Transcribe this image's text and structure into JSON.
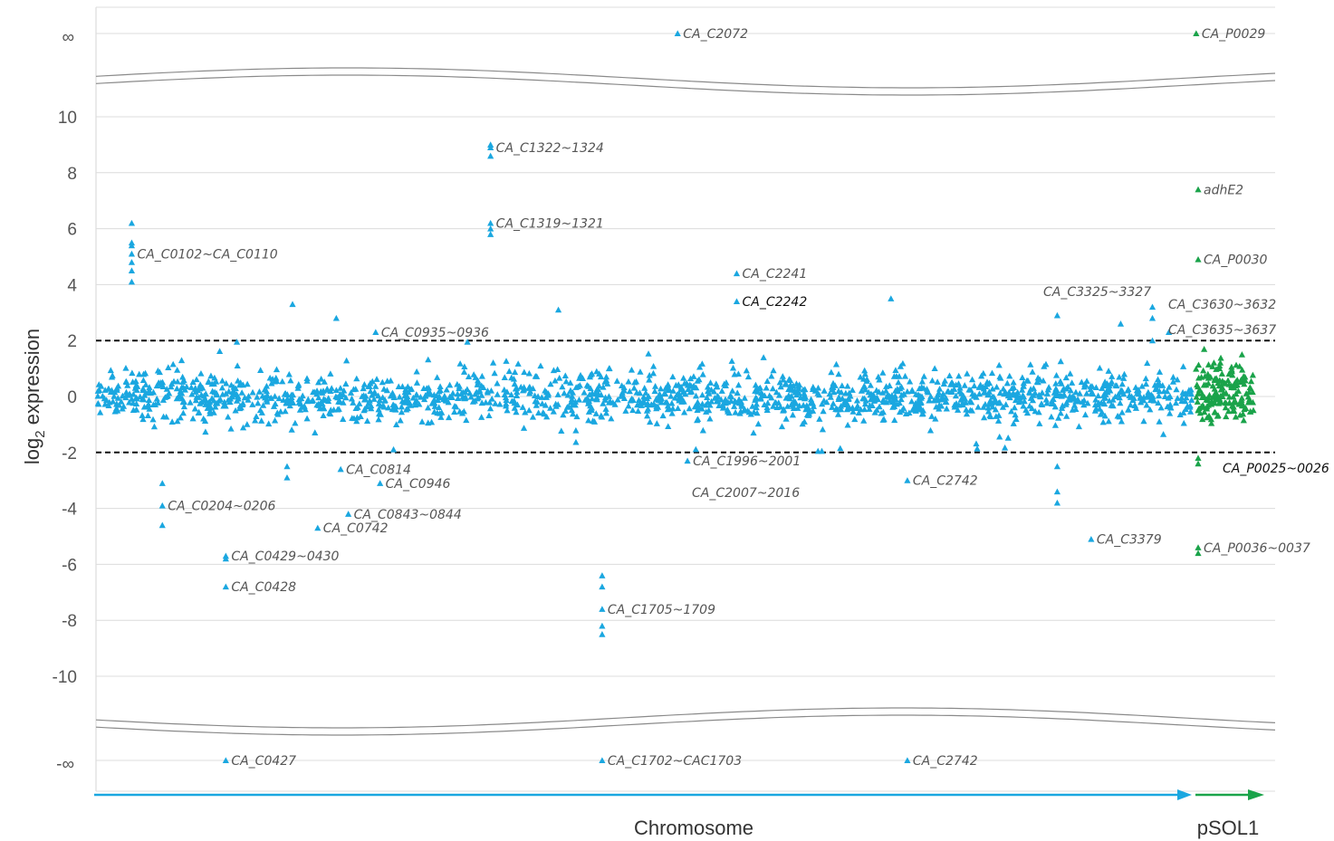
{
  "chart_data": {
    "type": "scatter",
    "ylabel_main": "log",
    "ylabel_sub": "2",
    "ylabel_rest": " expression",
    "y_ticks": [
      "10",
      "8",
      "6",
      "4",
      "2",
      "0",
      "-2",
      "-4",
      "-6",
      "-8",
      "-10"
    ],
    "y_tick_values": [
      10,
      8,
      6,
      4,
      2,
      0,
      -2,
      -4,
      -6,
      -8,
      -10
    ],
    "y_inf_label": "∞",
    "y_neginf_label": "-∞",
    "ylim": [
      -11,
      11
    ],
    "thresholds": [
      2,
      -2
    ],
    "grid": true,
    "x_segments": [
      {
        "label": "Chromosome",
        "color": "#1aa7e0"
      },
      {
        "label": "pSOL1",
        "color": "#1aa34a"
      }
    ],
    "series": [
      {
        "name": "Chromosome",
        "color": "#1aa7e0"
      },
      {
        "name": "pSOL1",
        "color": "#1aa34a"
      }
    ],
    "labeled_points": [
      {
        "label": "CA_C2072",
        "pos": 0.53,
        "y": "inf",
        "series": "Chromosome",
        "dark": false
      },
      {
        "label": "CA_P0029",
        "pos": 0.013,
        "y": "inf",
        "series": "pSOL1",
        "dark": false
      },
      {
        "label": "CA_C1322~1324",
        "pos": 0.359,
        "y": 8.9,
        "series": "Chromosome",
        "dark": false
      },
      {
        "label": "adhE2",
        "pos": 0.047,
        "y": 7.4,
        "series": "pSOL1",
        "dark": false
      },
      {
        "label": "CA_C1319~1321",
        "pos": 0.359,
        "y": 6.2,
        "series": "Chromosome",
        "dark": false
      },
      {
        "label": "CA_C0102~CA_C0110",
        "pos": 0.031,
        "y": 5.1,
        "series": "Chromosome",
        "dark": false
      },
      {
        "label": "CA_P0030",
        "pos": 0.047,
        "y": 4.9,
        "series": "pSOL1",
        "dark": false
      },
      {
        "label": "CA_C2241",
        "pos": 0.584,
        "y": 4.4,
        "series": "Chromosome",
        "dark": false
      },
      {
        "label": "CA_C2242",
        "pos": 0.584,
        "y": 3.4,
        "series": "Chromosome",
        "dark": true
      },
      {
        "label": "CA_C3325~3327",
        "pos": 0.877,
        "y": 3.3,
        "series": "Chromosome",
        "dark": false
      },
      {
        "label": "CA_C3630~3632",
        "pos": 0.964,
        "y": 3.1,
        "series": "Chromosome",
        "dark": false
      },
      {
        "label": "CA_C0935~0936",
        "pos": 0.254,
        "y": 2.3,
        "series": "Chromosome",
        "dark": false
      },
      {
        "label": "CA_C3635~3637",
        "pos": 0.979,
        "y": 2.3,
        "series": "Chromosome",
        "dark": false
      },
      {
        "label": "CA_C1996~2001",
        "pos": 0.539,
        "y": -2.3,
        "series": "Chromosome",
        "dark": false
      },
      {
        "label": "CA_P0025~0026",
        "pos": 0.25,
        "y": -2.3,
        "series": "pSOL1",
        "dark": true
      },
      {
        "label": "CA_C0814",
        "pos": 0.222,
        "y": -2.6,
        "series": "Chromosome",
        "dark": false
      },
      {
        "label": "CA_C2007~2016",
        "pos": 0.539,
        "y": -3.4,
        "series": "Chromosome",
        "dark": false
      },
      {
        "label": "CA_C2742",
        "pos": 0.74,
        "y": -3.0,
        "series": "Chromosome",
        "dark": false
      },
      {
        "label": "CA_C0946",
        "pos": 0.258,
        "y": -3.1,
        "series": "Chromosome",
        "dark": false
      },
      {
        "label": "CA_C0204~0206",
        "pos": 0.059,
        "y": -3.9,
        "series": "Chromosome",
        "dark": false
      },
      {
        "label": "CA_C0843~0844",
        "pos": 0.229,
        "y": -4.2,
        "series": "Chromosome",
        "dark": false
      },
      {
        "label": "CA_C0742",
        "pos": 0.201,
        "y": -4.7,
        "series": "Chromosome",
        "dark": false
      },
      {
        "label": "CA_C3379",
        "pos": 0.908,
        "y": -5.1,
        "series": "Chromosome",
        "dark": false
      },
      {
        "label": "CA_C0429~0430",
        "pos": 0.117,
        "y": -5.7,
        "series": "Chromosome",
        "dark": false
      },
      {
        "label": "CA_P0036~0037",
        "pos": 0.047,
        "y": -5.4,
        "series": "pSOL1",
        "dark": false
      },
      {
        "label": "CA_C0428",
        "pos": 0.117,
        "y": -6.8,
        "series": "Chromosome",
        "dark": false
      },
      {
        "label": "CA_C1705~1709",
        "pos": 0.461,
        "y": -7.6,
        "series": "Chromosome",
        "dark": false
      },
      {
        "label": "CA_C0427",
        "pos": 0.117,
        "y": "-inf",
        "series": "Chromosome",
        "dark": false
      },
      {
        "label": "CA_C1702~CAC1703",
        "pos": 0.461,
        "y": "-inf",
        "series": "Chromosome",
        "dark": false
      },
      {
        "label": "CA_C2742",
        "pos": 0.74,
        "y": "-inf",
        "series": "Chromosome",
        "dark": false
      }
    ],
    "unlabeled_outliers": [
      {
        "series": "Chromosome",
        "pos": 0.031,
        "y": [
          6.2,
          5.5,
          5.4,
          4.8,
          4.5,
          4.1
        ]
      },
      {
        "series": "Chromosome",
        "pos": 0.359,
        "y": [
          9.0,
          8.6,
          6.0,
          5.8
        ]
      },
      {
        "series": "Chromosome",
        "pos": 0.461,
        "y": [
          -6.4,
          -6.8,
          -8.2,
          -8.5
        ]
      },
      {
        "series": "Chromosome",
        "pos": 0.117,
        "y": [
          -5.8
        ]
      },
      {
        "series": "Chromosome",
        "pos": 0.059,
        "y": [
          -3.1,
          -4.6
        ]
      },
      {
        "series": "Chromosome",
        "pos": 0.178,
        "y": [
          3.3
        ]
      },
      {
        "series": "Chromosome",
        "pos": 0.218,
        "y": [
          2.8
        ]
      },
      {
        "series": "Chromosome",
        "pos": 0.421,
        "y": [
          3.1
        ]
      },
      {
        "series": "Chromosome",
        "pos": 0.725,
        "y": [
          3.5
        ]
      },
      {
        "series": "Chromosome",
        "pos": 0.877,
        "y": [
          2.9,
          -2.5,
          -3.4,
          -3.8
        ]
      },
      {
        "series": "Chromosome",
        "pos": 0.964,
        "y": [
          3.2,
          2.8,
          2.0
        ]
      },
      {
        "series": "Chromosome",
        "pos": 0.935,
        "y": [
          2.6
        ]
      },
      {
        "series": "Chromosome",
        "pos": 0.173,
        "y": [
          -2.5,
          -2.9
        ]
      },
      {
        "series": "pSOL1",
        "pos": 0.047,
        "y": [
          -2.2,
          -2.4,
          -5.6
        ]
      }
    ],
    "noise_seed": 7,
    "chrom_point_count": 1700,
    "plasmid_point_count": 170
  }
}
